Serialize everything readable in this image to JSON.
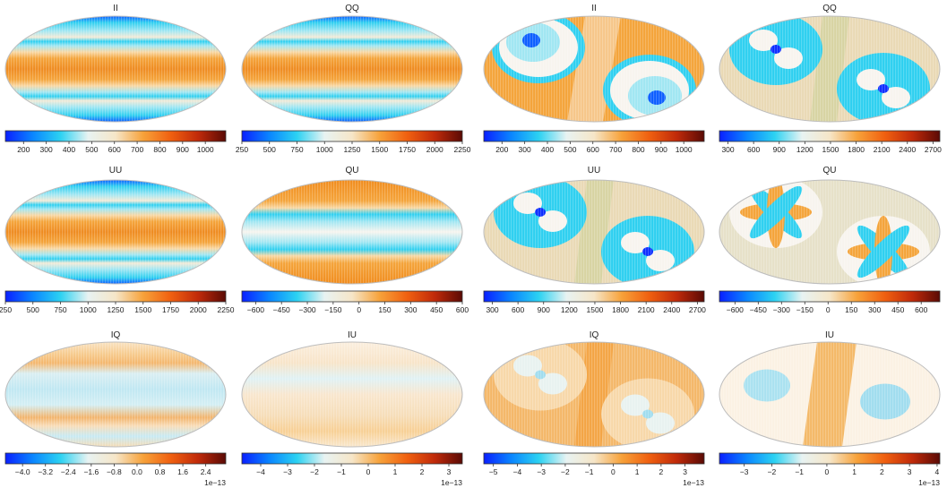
{
  "figure": {
    "description_type": "grid of Mollweide sky-map panels with horizontal colorbars",
    "colormap": "planck-like diverging",
    "colormap_stops": [
      "#0a1fff",
      "#0a86ff",
      "#2cd2f2",
      "#e8f3f2",
      "#f6e6c8",
      "#f7a23a",
      "#f06010",
      "#c02a0a",
      "#5a0a05"
    ]
  },
  "panels": [
    {
      "id": "p00",
      "title": "II",
      "pattern": "bands",
      "ticks": [
        "200",
        "300",
        "400",
        "500",
        "600",
        "700",
        "800",
        "900",
        "1000"
      ],
      "tick_values": [
        200,
        300,
        400,
        500,
        600,
        700,
        800,
        900,
        1000
      ],
      "range": [
        120,
        1090
      ],
      "multiplier": ""
    },
    {
      "id": "p01",
      "title": "QQ",
      "pattern": "bands",
      "ticks": [
        "250",
        "500",
        "750",
        "1000",
        "1250",
        "1500",
        "1750",
        "2000",
        "2250"
      ],
      "tick_values": [
        250,
        500,
        750,
        1000,
        1250,
        1500,
        1750,
        2000,
        2250
      ],
      "range": [
        250,
        2250
      ],
      "multiplier": ""
    },
    {
      "id": "p02",
      "title": "II",
      "pattern": "pinwheel",
      "ticks": [
        "200",
        "300",
        "400",
        "500",
        "600",
        "700",
        "800",
        "900",
        "1000"
      ],
      "tick_values": [
        200,
        300,
        400,
        500,
        600,
        700,
        800,
        900,
        1000
      ],
      "range": [
        120,
        1090
      ],
      "multiplier": ""
    },
    {
      "id": "p03",
      "title": "QQ",
      "pattern": "clover",
      "ticks": [
        "300",
        "600",
        "900",
        "1200",
        "1500",
        "1800",
        "2100",
        "2400",
        "2700"
      ],
      "tick_values": [
        300,
        600,
        900,
        1200,
        1500,
        1800,
        2100,
        2400,
        2700
      ],
      "range": [
        200,
        2780
      ],
      "multiplier": ""
    },
    {
      "id": "p10",
      "title": "UU",
      "pattern": "bands",
      "ticks": [
        "250",
        "500",
        "750",
        "1000",
        "1250",
        "1500",
        "1750",
        "2000",
        "2250"
      ],
      "tick_values": [
        250,
        500,
        750,
        1000,
        1250,
        1500,
        1750,
        2000,
        2250
      ],
      "range": [
        250,
        2250
      ],
      "multiplier": ""
    },
    {
      "id": "p11",
      "title": "QU",
      "pattern": "bands-inverted",
      "ticks": [
        "−600",
        "−450",
        "−300",
        "−150",
        "0",
        "150",
        "300",
        "450",
        "600"
      ],
      "tick_values": [
        -600,
        -450,
        -300,
        -150,
        0,
        150,
        300,
        450,
        600
      ],
      "range": [
        -680,
        600
      ],
      "multiplier": ""
    },
    {
      "id": "p12",
      "title": "UU",
      "pattern": "clover",
      "ticks": [
        "300",
        "600",
        "900",
        "1200",
        "1500",
        "1800",
        "2100",
        "2400",
        "2700"
      ],
      "tick_values": [
        300,
        600,
        900,
        1200,
        1500,
        1800,
        2100,
        2400,
        2700
      ],
      "range": [
        200,
        2780
      ],
      "multiplier": ""
    },
    {
      "id": "p13",
      "title": "QU",
      "pattern": "petals",
      "ticks": [
        "−600",
        "−450",
        "−300",
        "−150",
        "0",
        "150",
        "300",
        "450",
        "600"
      ],
      "tick_values": [
        -600,
        -450,
        -300,
        -150,
        0,
        150,
        300,
        450,
        600
      ],
      "range": [
        -700,
        720
      ],
      "multiplier": ""
    },
    {
      "id": "p20",
      "title": "IQ",
      "pattern": "faint-bands",
      "ticks": [
        "−4.0",
        "−3.2",
        "−2.4",
        "−1.6",
        "−0.8",
        "0.0",
        "0.8",
        "1.6",
        "2.4"
      ],
      "tick_values": [
        -4.0,
        -3.2,
        -2.4,
        -1.6,
        -0.8,
        0.0,
        0.8,
        1.6,
        2.4
      ],
      "range": [
        -4.6,
        3.1
      ],
      "multiplier": "1e−13"
    },
    {
      "id": "p21",
      "title": "IU",
      "pattern": "faint-bands",
      "ticks": [
        "−4",
        "−3",
        "−2",
        "−1",
        "0",
        "1",
        "2",
        "3"
      ],
      "tick_values": [
        -4,
        -3,
        -2,
        -1,
        0,
        1,
        2,
        3
      ],
      "range": [
        -4.7,
        3.5
      ],
      "multiplier": "1e−13"
    },
    {
      "id": "p22",
      "title": "IQ",
      "pattern": "faint-clover",
      "ticks": [
        "−5",
        "−4",
        "−3",
        "−2",
        "−1",
        "0",
        "1",
        "2",
        "3"
      ],
      "tick_values": [
        -5,
        -4,
        -3,
        -2,
        -1,
        0,
        1,
        2,
        3
      ],
      "range": [
        -5.4,
        3.8
      ],
      "multiplier": "1e−13"
    },
    {
      "id": "p23",
      "title": "IU",
      "pattern": "faint-diag",
      "ticks": [
        "−3",
        "−2",
        "−1",
        "0",
        "1",
        "2",
        "3",
        "4"
      ],
      "tick_values": [
        -3,
        -2,
        -1,
        0,
        1,
        2,
        3,
        4
      ],
      "range": [
        -3.9,
        4.1
      ],
      "multiplier": "1e−13"
    }
  ]
}
